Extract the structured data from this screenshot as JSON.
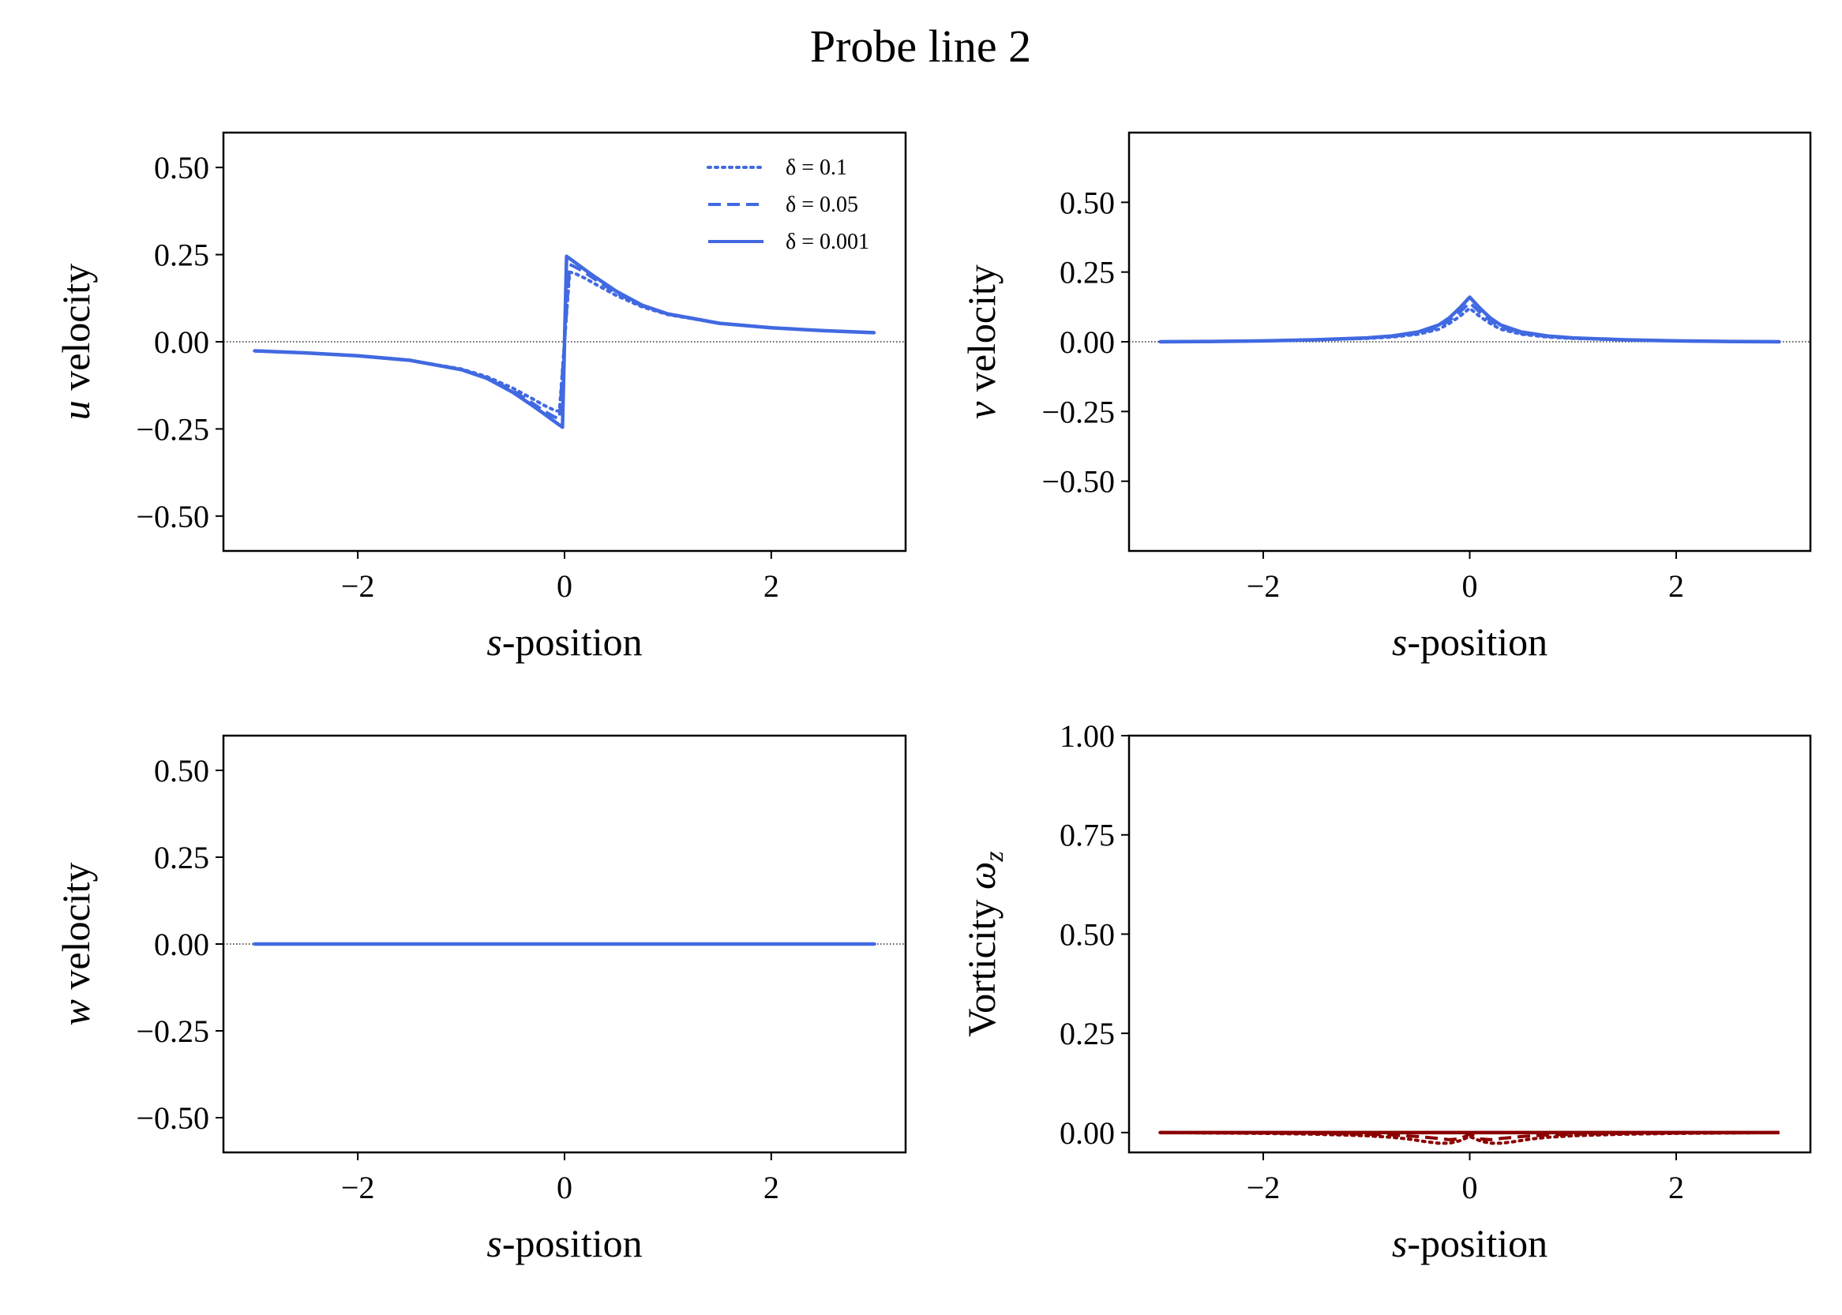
{
  "figure": {
    "title": "Probe line 2"
  },
  "chart_data": [
    {
      "type": "line",
      "panel": "u",
      "xlabel_italic": "s",
      "xlabel_rest": "-position",
      "ylabel_italic": "u",
      "ylabel_rest": " velocity",
      "xlim": [
        -3.3,
        3.3
      ],
      "ylim": [
        -0.6,
        0.6
      ],
      "xticks": [
        -2,
        0,
        2
      ],
      "xtick_labels": [
        "−2",
        "0",
        "2"
      ],
      "yticks": [
        0.5,
        0.25,
        0.0,
        -0.25,
        -0.5
      ],
      "ytick_labels": [
        "0.50",
        "0.25",
        "0.00",
        "−0.25",
        "−0.50"
      ],
      "zero_line": true,
      "grid": false,
      "legend": {
        "placement": "top-right",
        "entries": [
          "δ = 0.1",
          "δ = 0.05",
          "δ = 0.001"
        ]
      },
      "series": [
        {
          "name": "δ = 0.1",
          "style": "dotted",
          "x": [
            -3,
            -2.5,
            -2,
            -1.5,
            -1,
            -0.75,
            -0.5,
            -0.3,
            -0.2,
            -0.1,
            -0.05,
            0,
            0.05,
            0.1,
            0.2,
            0.3,
            0.5,
            0.75,
            1,
            1.5,
            2,
            2.5,
            3
          ],
          "y": [
            -0.026,
            -0.032,
            -0.04,
            -0.053,
            -0.078,
            -0.1,
            -0.133,
            -0.165,
            -0.182,
            -0.196,
            -0.2,
            0,
            0.2,
            0.196,
            0.182,
            0.165,
            0.133,
            0.1,
            0.078,
            0.053,
            0.04,
            0.032,
            0.026
          ]
        },
        {
          "name": "δ = 0.05",
          "style": "dashed",
          "x": [
            -3,
            -2.5,
            -2,
            -1.5,
            -1,
            -0.75,
            -0.5,
            -0.3,
            -0.2,
            -0.1,
            -0.05,
            0,
            0.05,
            0.1,
            0.2,
            0.3,
            0.5,
            0.75,
            1,
            1.5,
            2,
            2.5,
            3
          ],
          "y": [
            -0.026,
            -0.032,
            -0.04,
            -0.053,
            -0.079,
            -0.103,
            -0.14,
            -0.178,
            -0.198,
            -0.215,
            -0.222,
            0,
            0.222,
            0.215,
            0.198,
            0.178,
            0.14,
            0.103,
            0.079,
            0.053,
            0.04,
            0.032,
            0.026
          ]
        },
        {
          "name": "δ = 0.001",
          "style": "solid",
          "x": [
            -3,
            -2.5,
            -2,
            -1.5,
            -1,
            -0.75,
            -0.5,
            -0.3,
            -0.2,
            -0.1,
            -0.02,
            0,
            0.02,
            0.1,
            0.2,
            0.3,
            0.5,
            0.75,
            1,
            1.5,
            2,
            2.5,
            3
          ],
          "y": [
            -0.026,
            -0.032,
            -0.04,
            -0.053,
            -0.08,
            -0.105,
            -0.145,
            -0.185,
            -0.206,
            -0.228,
            -0.245,
            0,
            0.245,
            0.228,
            0.206,
            0.185,
            0.145,
            0.105,
            0.08,
            0.053,
            0.04,
            0.032,
            0.026
          ]
        }
      ],
      "color": "#4169e1"
    },
    {
      "type": "line",
      "panel": "v",
      "xlabel_italic": "s",
      "xlabel_rest": "-position",
      "ylabel_italic": "v",
      "ylabel_rest": " velocity",
      "xlim": [
        -3.3,
        3.3
      ],
      "ylim": [
        -0.75,
        0.75
      ],
      "xticks": [
        -2,
        0,
        2
      ],
      "xtick_labels": [
        "−2",
        "0",
        "2"
      ],
      "yticks": [
        0.5,
        0.25,
        0.0,
        -0.25,
        -0.5
      ],
      "ytick_labels": [
        "0.50",
        "0.25",
        "0.00",
        "−0.25",
        "−0.50"
      ],
      "zero_line": true,
      "grid": false,
      "series": [
        {
          "name": "δ = 0.1",
          "style": "dotted",
          "x": [
            -3,
            -2.5,
            -2,
            -1.5,
            -1,
            -0.75,
            -0.5,
            -0.3,
            -0.2,
            -0.1,
            0,
            0.1,
            0.2,
            0.3,
            0.5,
            0.75,
            1,
            1.5,
            2,
            2.5,
            3
          ],
          "y": [
            0.0,
            0.001,
            0.003,
            0.007,
            0.012,
            0.017,
            0.027,
            0.045,
            0.065,
            0.09,
            0.12,
            0.09,
            0.065,
            0.045,
            0.027,
            0.017,
            0.012,
            0.007,
            0.003,
            0.001,
            0.0
          ]
        },
        {
          "name": "δ = 0.05",
          "style": "dashed",
          "x": [
            -3,
            -2.5,
            -2,
            -1.5,
            -1,
            -0.75,
            -0.5,
            -0.3,
            -0.2,
            -0.1,
            0,
            0.1,
            0.2,
            0.3,
            0.5,
            0.75,
            1,
            1.5,
            2,
            2.5,
            3
          ],
          "y": [
            0.0,
            0.001,
            0.003,
            0.007,
            0.013,
            0.019,
            0.03,
            0.052,
            0.075,
            0.105,
            0.14,
            0.105,
            0.075,
            0.052,
            0.03,
            0.019,
            0.013,
            0.007,
            0.003,
            0.001,
            0.0
          ]
        },
        {
          "name": "δ = 0.001",
          "style": "solid",
          "x": [
            -3,
            -2.5,
            -2,
            -1.5,
            -1,
            -0.75,
            -0.5,
            -0.3,
            -0.2,
            -0.1,
            0,
            0.1,
            0.2,
            0.3,
            0.5,
            0.75,
            1,
            1.5,
            2,
            2.5,
            3
          ],
          "y": [
            0.0,
            0.001,
            0.003,
            0.007,
            0.014,
            0.021,
            0.035,
            0.06,
            0.085,
            0.12,
            0.16,
            0.12,
            0.085,
            0.06,
            0.035,
            0.021,
            0.014,
            0.007,
            0.003,
            0.001,
            0.0
          ]
        }
      ],
      "color": "#4169e1"
    },
    {
      "type": "line",
      "panel": "w",
      "xlabel_italic": "s",
      "xlabel_rest": "-position",
      "ylabel_italic": "w",
      "ylabel_rest": " velocity",
      "xlim": [
        -3.3,
        3.3
      ],
      "ylim": [
        -0.6,
        0.6
      ],
      "xticks": [
        -2,
        0,
        2
      ],
      "xtick_labels": [
        "−2",
        "0",
        "2"
      ],
      "yticks": [
        0.5,
        0.25,
        0.0,
        -0.25,
        -0.5
      ],
      "ytick_labels": [
        "0.50",
        "0.25",
        "0.00",
        "−0.25",
        "−0.50"
      ],
      "zero_line": true,
      "grid": false,
      "series": [
        {
          "name": "δ = 0.1",
          "style": "dotted",
          "x": [
            -3,
            3
          ],
          "y": [
            0,
            0
          ]
        },
        {
          "name": "δ = 0.05",
          "style": "dashed",
          "x": [
            -3,
            3
          ],
          "y": [
            0,
            0
          ]
        },
        {
          "name": "δ = 0.001",
          "style": "solid",
          "x": [
            -3,
            3
          ],
          "y": [
            0,
            0
          ]
        }
      ],
      "color": "#4169e1"
    },
    {
      "type": "line",
      "panel": "vorticity",
      "xlabel_italic": "s",
      "xlabel_rest": "-position",
      "ylabel_plain": "Vorticity ",
      "ylabel_symbol": "ω",
      "ylabel_sub": "z",
      "xlim": [
        -3.3,
        3.3
      ],
      "ylim": [
        -0.05,
        1.0
      ],
      "xticks": [
        -2,
        0,
        2
      ],
      "xtick_labels": [
        "−2",
        "0",
        "2"
      ],
      "yticks": [
        1.0,
        0.75,
        0.5,
        0.25,
        0.0
      ],
      "ytick_labels": [
        "1.00",
        "0.75",
        "0.50",
        "0.25",
        "0.00"
      ],
      "zero_line": false,
      "grid": false,
      "series": [
        {
          "name": "δ = 0.1",
          "style": "dotted",
          "x": [
            -3,
            -2,
            -1.5,
            -1,
            -0.75,
            -0.6,
            -0.5,
            -0.4,
            -0.3,
            -0.2,
            -0.1,
            0,
            0.1,
            0.2,
            0.3,
            0.4,
            0.5,
            0.6,
            0.75,
            1,
            1.5,
            2,
            3
          ],
          "y": [
            0,
            -0.002,
            -0.004,
            -0.008,
            -0.012,
            -0.016,
            -0.02,
            -0.024,
            -0.027,
            -0.027,
            -0.021,
            -0.01,
            -0.021,
            -0.027,
            -0.027,
            -0.024,
            -0.02,
            -0.016,
            -0.012,
            -0.008,
            -0.004,
            -0.002,
            0
          ]
        },
        {
          "name": "δ = 0.05",
          "style": "dashed",
          "x": [
            -3,
            -2,
            -1.5,
            -1,
            -0.75,
            -0.5,
            -0.3,
            -0.2,
            -0.1,
            -0.05,
            0,
            0.05,
            0.1,
            0.2,
            0.3,
            0.5,
            0.75,
            1,
            1.5,
            2,
            3
          ],
          "y": [
            0,
            -0.001,
            -0.002,
            -0.004,
            -0.006,
            -0.01,
            -0.015,
            -0.018,
            -0.016,
            -0.01,
            -0.004,
            -0.01,
            -0.016,
            -0.018,
            -0.015,
            -0.01,
            -0.006,
            -0.004,
            -0.002,
            -0.001,
            0
          ]
        },
        {
          "name": "δ = 0.001",
          "style": "solid",
          "x": [
            -3,
            3
          ],
          "y": [
            0,
            0
          ]
        }
      ],
      "color": "#8b0000"
    }
  ]
}
